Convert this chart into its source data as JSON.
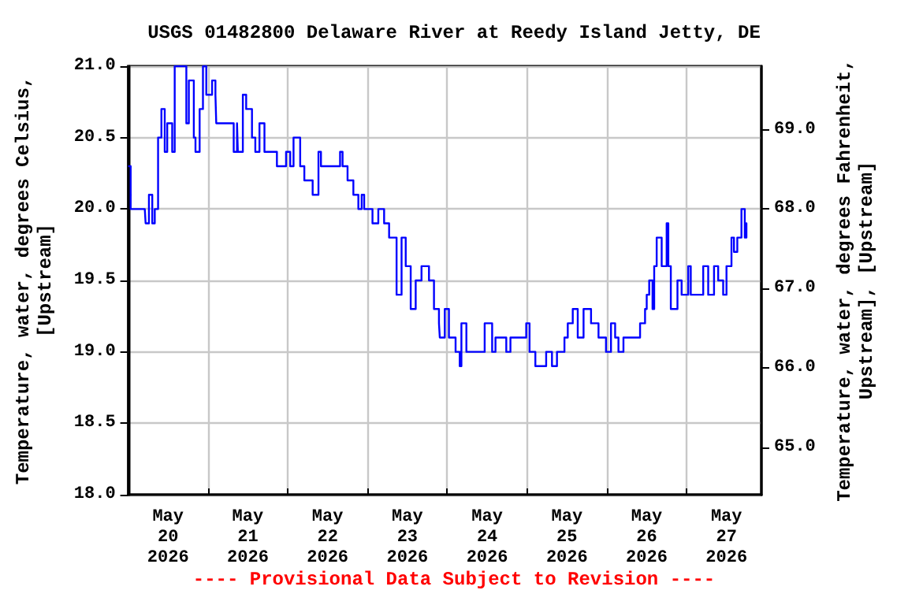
{
  "chart_data": {
    "type": "step",
    "title": "USGS 01482800 Delaware River at Reedy Island Jetty, DE",
    "ylabel": "Temperature, water, degrees Celsius,\n[Upstream]",
    "y2label": "Temperature, water, degrees Fahrenheit,\nUpstream], [Upstream]",
    "annotations": [
      "---- Provisional Data Subject to Revision ----"
    ],
    "x": [
      "2026-05-20T00:15",
      "2026-05-20T00:45",
      "2026-05-20T05:00",
      "2026-05-20T05:15",
      "2026-05-20T06:15",
      "2026-05-20T07:15",
      "2026-05-20T08:00",
      "2026-05-20T09:00",
      "2026-05-20T10:00",
      "2026-05-20T11:00",
      "2026-05-20T11:45",
      "2026-05-20T13:15",
      "2026-05-20T14:00",
      "2026-05-20T16:00",
      "2026-05-20T17:30",
      "2026-05-20T18:15",
      "2026-05-20T19:45",
      "2026-05-20T20:15",
      "2026-05-20T21:30",
      "2026-05-20T22:30",
      "2026-05-20T23:30",
      "2026-05-21T01:15",
      "2026-05-21T02:15",
      "2026-05-21T02:30",
      "2026-05-21T06:45",
      "2026-05-21T07:45",
      "2026-05-21T08:45",
      "2026-05-21T09:00",
      "2026-05-21T10:30",
      "2026-05-21T11:30",
      "2026-05-21T13:15",
      "2026-05-21T14:15",
      "2026-05-21T15:30",
      "2026-05-21T17:00",
      "2026-05-21T19:45",
      "2026-05-21T20:45",
      "2026-05-21T23:30",
      "2026-05-22T00:45",
      "2026-05-22T01:45",
      "2026-05-22T03:45",
      "2026-05-22T05:00",
      "2026-05-22T07:30",
      "2026-05-22T09:15",
      "2026-05-22T10:00",
      "2026-05-22T14:45",
      "2026-05-22T15:45",
      "2026-05-22T16:30",
      "2026-05-22T18:00",
      "2026-05-22T19:45",
      "2026-05-22T21:15",
      "2026-05-22T22:15",
      "2026-05-22T23:00",
      "2026-05-23T01:30",
      "2026-05-23T03:15",
      "2026-05-23T05:00",
      "2026-05-23T06:30",
      "2026-05-23T08:15",
      "2026-05-23T08:45",
      "2026-05-23T10:15",
      "2026-05-23T11:30",
      "2026-05-23T13:00",
      "2026-05-23T14:30",
      "2026-05-23T16:15",
      "2026-05-23T18:30",
      "2026-05-23T20:00",
      "2026-05-23T21:30",
      "2026-05-23T21:45",
      "2026-05-23T23:15",
      "2026-05-24T00:30",
      "2026-05-24T02:30",
      "2026-05-24T03:45",
      "2026-05-24T04:15",
      "2026-05-24T05:45",
      "2026-05-24T10:00",
      "2026-05-24T11:15",
      "2026-05-24T13:00",
      "2026-05-24T13:30",
      "2026-05-24T14:30",
      "2026-05-24T17:45",
      "2026-05-24T19:00",
      "2026-05-24T22:30",
      "2026-05-24T23:45",
      "2026-05-25T00:45",
      "2026-05-25T02:30",
      "2026-05-25T04:30",
      "2026-05-25T05:45",
      "2026-05-25T07:30",
      "2026-05-25T09:00",
      "2026-05-25T11:15",
      "2026-05-25T12:15",
      "2026-05-25T13:45",
      "2026-05-25T15:15",
      "2026-05-25T17:00",
      "2026-05-25T19:15",
      "2026-05-25T21:30",
      "2026-05-25T23:45",
      "2026-05-26T01:15",
      "2026-05-26T02:30",
      "2026-05-26T03:30",
      "2026-05-26T05:00",
      "2026-05-26T08:45",
      "2026-05-26T10:00",
      "2026-05-26T11:30",
      "2026-05-26T12:00",
      "2026-05-26T12:45",
      "2026-05-26T13:45",
      "2026-05-26T14:15",
      "2026-05-26T15:00",
      "2026-05-26T16:30",
      "2026-05-26T18:00",
      "2026-05-26T18:30",
      "2026-05-26T19:15",
      "2026-05-26T21:15",
      "2026-05-26T22:30",
      "2026-05-27T00:30",
      "2026-05-27T01:15",
      "2026-05-27T03:30",
      "2026-05-27T05:00",
      "2026-05-27T06:30",
      "2026-05-27T08:15",
      "2026-05-27T09:30",
      "2026-05-27T11:00",
      "2026-05-27T12:00",
      "2026-05-27T13:30",
      "2026-05-27T14:15",
      "2026-05-27T15:15",
      "2026-05-27T16:30",
      "2026-05-27T17:30",
      "2026-05-27T18:00"
    ],
    "series": [
      {
        "color": "#0000ff",
        "values": [
          20.3,
          20.0,
          20.0,
          19.9,
          20.1,
          19.9,
          20.0,
          20.5,
          20.7,
          20.4,
          20.6,
          20.4,
          21.0,
          21.0,
          20.6,
          20.9,
          20.5,
          20.4,
          20.7,
          21.0,
          20.8,
          20.9,
          20.8,
          20.6,
          20.6,
          20.4,
          20.6,
          20.4,
          20.8,
          20.7,
          20.5,
          20.4,
          20.6,
          20.4,
          20.4,
          20.3,
          20.4,
          20.3,
          20.5,
          20.3,
          20.2,
          20.1,
          20.4,
          20.3,
          20.3,
          20.4,
          20.3,
          20.2,
          20.1,
          20.0,
          20.1,
          20.0,
          19.9,
          20.0,
          19.9,
          19.8,
          19.8,
          19.4,
          19.8,
          19.6,
          19.3,
          19.5,
          19.6,
          19.5,
          19.3,
          19.2,
          19.1,
          19.3,
          19.1,
          19.0,
          18.9,
          19.2,
          19.0,
          19.0,
          19.2,
          19.2,
          19.0,
          19.1,
          19.0,
          19.1,
          19.1,
          19.2,
          19.0,
          18.9,
          18.9,
          19.0,
          18.9,
          19.0,
          19.1,
          19.2,
          19.3,
          19.1,
          19.3,
          19.2,
          19.1,
          19.0,
          19.2,
          19.1,
          19.0,
          19.1,
          19.1,
          19.2,
          19.3,
          19.4,
          19.5,
          19.3,
          19.6,
          19.8,
          19.6,
          19.9,
          19.6,
          19.3,
          19.5,
          19.4,
          19.6,
          19.4,
          19.4,
          19.6,
          19.4,
          19.6,
          19.5,
          19.4,
          19.6,
          19.8,
          19.7,
          19.8,
          20.0,
          19.8,
          19.9
        ]
      }
    ],
    "xlim": [
      "2026-05-20T00:00",
      "2026-05-27T22:30"
    ],
    "xticks": [
      {
        "value": "2026-05-20T12:00",
        "label": "May\n20\n2026"
      },
      {
        "value": "2026-05-21T00:00",
        "label": null
      },
      {
        "value": "2026-05-21T12:00",
        "label": "May\n21\n2026"
      },
      {
        "value": "2026-05-22T00:00",
        "label": null
      },
      {
        "value": "2026-05-22T12:00",
        "label": "May\n22\n2026"
      },
      {
        "value": "2026-05-23T00:00",
        "label": null
      },
      {
        "value": "2026-05-23T12:00",
        "label": "May\n23\n2026"
      },
      {
        "value": "2026-05-24T00:00",
        "label": null
      },
      {
        "value": "2026-05-24T12:00",
        "label": "May\n24\n2026"
      },
      {
        "value": "2026-05-25T00:00",
        "label": null
      },
      {
        "value": "2026-05-25T12:00",
        "label": "May\n25\n2026"
      },
      {
        "value": "2026-05-26T00:00",
        "label": null
      },
      {
        "value": "2026-05-26T12:00",
        "label": "May\n26\n2026"
      },
      {
        "value": "2026-05-27T00:00",
        "label": null
      },
      {
        "value": "2026-05-27T12:00",
        "label": "May\n27\n2026"
      }
    ],
    "ylim": [
      18,
      21
    ],
    "yticks": [
      {
        "value": 18,
        "label": "18.0"
      },
      {
        "value": 18.5,
        "label": "18.5"
      },
      {
        "value": 19,
        "label": "19.0"
      },
      {
        "value": 19.5,
        "label": "19.5"
      },
      {
        "value": 20,
        "label": "20.0"
      },
      {
        "value": 20.5,
        "label": "20.5"
      },
      {
        "value": 21,
        "label": "21.0"
      }
    ],
    "y2lim": [
      64.4,
      69.8
    ],
    "y2ticks": [
      {
        "value": 65,
        "label": "65.0"
      },
      {
        "value": 66,
        "label": "66.0"
      },
      {
        "value": 67,
        "label": "67.0"
      },
      {
        "value": 68,
        "label": "68.0"
      },
      {
        "value": 69,
        "label": "69.0"
      }
    ],
    "grid": true,
    "marker": "none",
    "line_style": "solid"
  }
}
